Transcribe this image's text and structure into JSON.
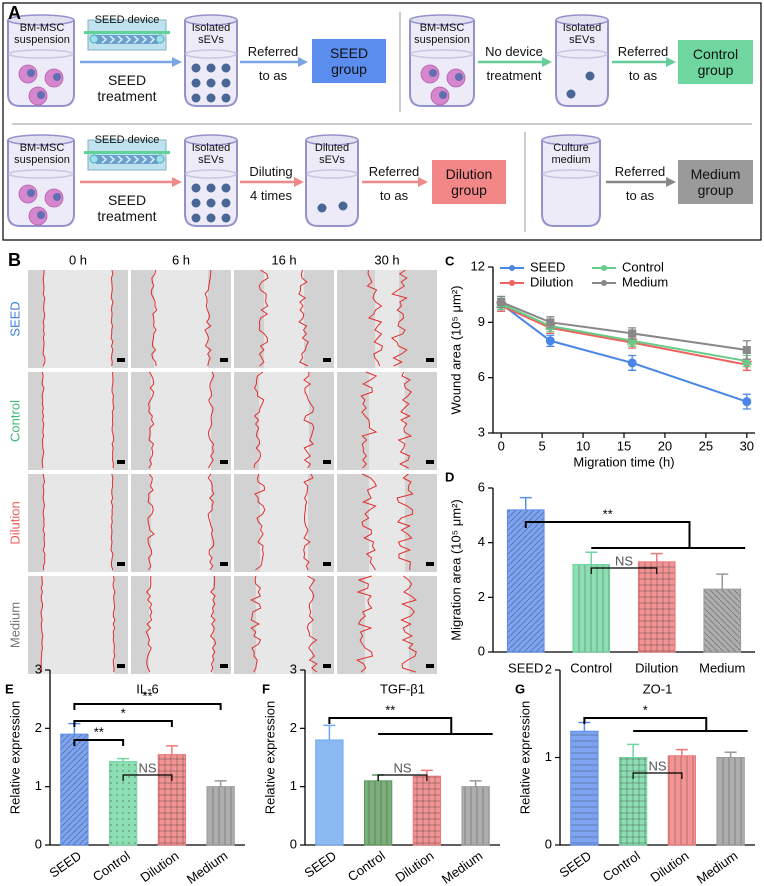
{
  "panel_a": {
    "label": "A",
    "seed_row": {
      "suspension": "BM-MSC suspension",
      "device": "SEED device",
      "treatment": "SEED treatment",
      "isolated": "Isolated sEVs",
      "referred": "Referred",
      "to_as": "to as",
      "group": "SEED group"
    },
    "control_row": {
      "suspension": "BM-MSC suspension",
      "no_device": "No device",
      "treatment": "treatment",
      "isolated": "Isolated sEVs",
      "referred": "Referred",
      "to_as": "to as",
      "group": "Control group"
    },
    "dilution_row": {
      "suspension": "BM-MSC suspension",
      "device": "SEED device",
      "treatment": "SEED treatment",
      "isolated": "Isolated sEVs",
      "diluting": "Diluting",
      "times": "4 times",
      "diluted": "Diluted sEVs",
      "referred": "Referred",
      "to_as": "to as",
      "group": "Dilution group"
    },
    "medium_row": {
      "medium": "Culture medium",
      "referred": "Referred",
      "to_as": "to as",
      "group": "Medium group"
    }
  },
  "panel_b": {
    "label": "B",
    "times": [
      "0 h",
      "6 h",
      "16 h",
      "30 h"
    ],
    "groups": [
      {
        "name": "SEED",
        "color": "#3a7be0"
      },
      {
        "name": "Control",
        "color": "#3fb97a"
      },
      {
        "name": "Dilution",
        "color": "#ee5b5b"
      },
      {
        "name": "Medium",
        "color": "#777777"
      }
    ]
  },
  "chart_data": [
    {
      "label": "C",
      "type": "line",
      "x_label": "Migration time (h)",
      "y_label": "Wound area (10⁵ μm²)",
      "x": [
        0,
        6,
        16,
        30
      ],
      "xlim": [
        -1,
        31
      ],
      "xticks": [
        0,
        5,
        10,
        15,
        20,
        25,
        30
      ],
      "ylim": [
        3,
        12
      ],
      "yticks": [
        3,
        6,
        9,
        12
      ],
      "series": [
        {
          "name": "SEED",
          "color": "#4a86e8",
          "marker": "circle",
          "values": [
            10.0,
            8.0,
            6.8,
            4.7
          ],
          "errors": [
            0.4,
            0.3,
            0.4,
            0.4
          ]
        },
        {
          "name": "Dilution",
          "color": "#f0625e",
          "marker": "triangle-down",
          "values": [
            9.9,
            8.7,
            7.9,
            6.7
          ],
          "errors": [
            0.3,
            0.3,
            0.3,
            0.3
          ]
        },
        {
          "name": "Control",
          "color": "#66cc88",
          "marker": "triangle-up",
          "values": [
            10.0,
            8.8,
            8.0,
            6.9
          ],
          "errors": [
            0.3,
            0.3,
            0.3,
            0.3
          ]
        },
        {
          "name": "Medium",
          "color": "#888888",
          "marker": "square",
          "values": [
            10.1,
            9.0,
            8.4,
            7.5
          ],
          "errors": [
            0.3,
            0.3,
            0.3,
            0.5
          ]
        }
      ]
    },
    {
      "label": "D",
      "type": "bar",
      "y_label": "Migration area (10⁵ μm²)",
      "categories": [
        "SEED",
        "Control",
        "Dilution",
        "Medium"
      ],
      "values": [
        5.2,
        3.2,
        3.3,
        2.3
      ],
      "errors": [
        0.45,
        0.45,
        0.3,
        0.55
      ],
      "colors": [
        "#5b8def",
        "#6fd6a0",
        "#f07878",
        "#9a9a9a"
      ],
      "ylim": [
        0,
        6
      ],
      "yticks": [
        0,
        2,
        4,
        6
      ],
      "annotations": [
        "**",
        "NS"
      ]
    },
    {
      "label": "E",
      "type": "bar",
      "title": "IL-6",
      "y_label": "Relative expression",
      "categories": [
        "SEED",
        "Control",
        "Dilution",
        "Medium"
      ],
      "values": [
        1.9,
        1.43,
        1.55,
        1.0
      ],
      "errors": [
        0.18,
        0.05,
        0.15,
        0.1
      ],
      "colors": [
        "#5b8def",
        "#6fd6a0",
        "#f07878",
        "#9a9a9a"
      ],
      "ylim": [
        0,
        3
      ],
      "yticks": [
        0,
        1,
        2,
        3
      ],
      "annotations": [
        "**",
        "*",
        "**",
        "NS"
      ]
    },
    {
      "label": "F",
      "type": "bar",
      "title": "TGF-β1",
      "y_label": "Relative expression",
      "categories": [
        "SEED",
        "Control",
        "Dilution",
        "Medium"
      ],
      "values": [
        1.8,
        1.1,
        1.18,
        1.0
      ],
      "errors": [
        0.25,
        0.1,
        0.1,
        0.1
      ],
      "colors": [
        "#6ea8ef",
        "#5a9a5a",
        "#f07878",
        "#9a9a9a"
      ],
      "ylim": [
        0,
        3
      ],
      "yticks": [
        0,
        1,
        2,
        3
      ],
      "annotations": [
        "**",
        "NS"
      ]
    },
    {
      "label": "G",
      "type": "bar",
      "title": "ZO-1",
      "y_label": "Relative expression",
      "categories": [
        "SEED",
        "Control",
        "Dilution",
        "Medium"
      ],
      "values": [
        1.3,
        1.0,
        1.02,
        1.0
      ],
      "errors": [
        0.1,
        0.15,
        0.07,
        0.06
      ],
      "colors": [
        "#5b8def",
        "#6fd6a0",
        "#f07878",
        "#9a9a9a"
      ],
      "ylim": [
        0,
        2
      ],
      "yticks": [
        0,
        1,
        2
      ],
      "annotations": [
        "*",
        "NS"
      ]
    }
  ]
}
